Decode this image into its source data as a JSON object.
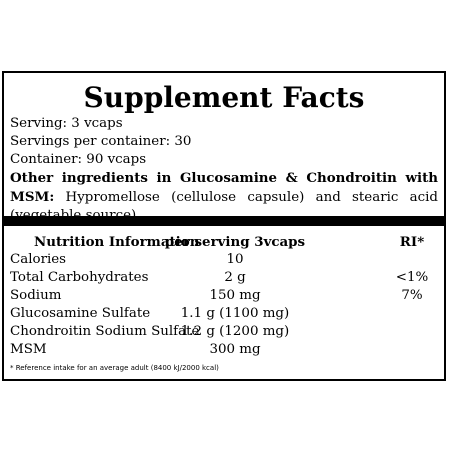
{
  "title": "Supplement Facts",
  "serving": "Serving: 3 vcaps",
  "servings_per_container": "Servings per container: 30",
  "container": "Container: 90 vcaps",
  "other_ingredients_label": "Other ingredients in Glucosamine & Chondroitin with MSM:",
  "other_ingredients_text": " Hypromellose (cellulose capsule) and stearic acid (vegetable source).",
  "table": {
    "headers": [
      "Nutrition Information",
      "per serving 3vcaps",
      "RI*"
    ],
    "rows": [
      [
        "Calories",
        "10",
        ""
      ],
      [
        "Total Carbohydrates",
        "2 g",
        "<1%"
      ],
      [
        "Sodium",
        "150 mg",
        "7%"
      ],
      [
        "Glucosamine Sulfate",
        "1.1 g (1100 mg)",
        ""
      ],
      [
        "Chondroitin Sodium Sulfate",
        "1.2 g (1200 mg)",
        ""
      ],
      [
        "MSM",
        "300 mg",
        ""
      ]
    ]
  },
  "footnote": "* Reference intake for an average adult (8400 kJ/2000 kcal)"
}
